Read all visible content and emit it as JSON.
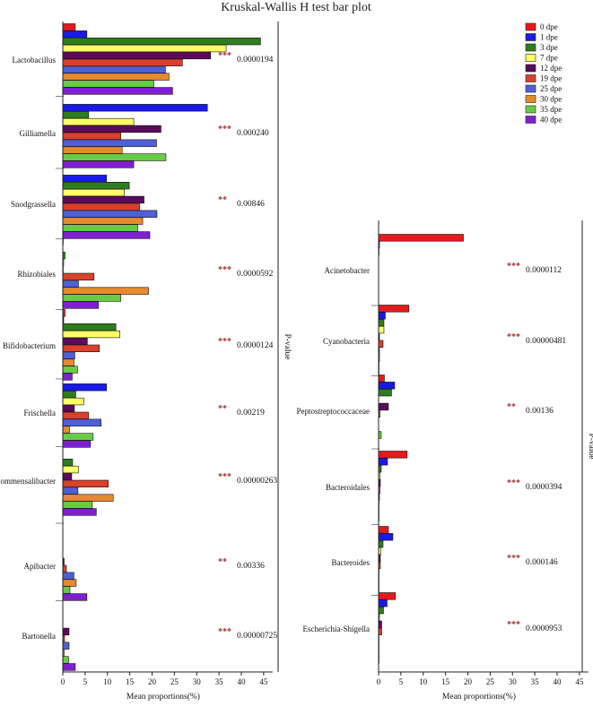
{
  "chart_data": {
    "type": "bar",
    "orientation": "horizontal",
    "title": "Kruskal-Wallis H test bar plot",
    "xlabel": "Mean proportions(%)",
    "pvalue_axis_label": "P-value",
    "xlim": [
      0,
      47
    ],
    "xticks": [
      0,
      5,
      10,
      15,
      20,
      25,
      30,
      35,
      40,
      45
    ],
    "legend_position": "top-right",
    "groups": [
      {
        "name": "0 dpe",
        "color": "#e41a1c"
      },
      {
        "name": "1 dpe",
        "color": "#1a1ae6"
      },
      {
        "name": "3 dpe",
        "color": "#2e7d1f"
      },
      {
        "name": "7 dpe",
        "color": "#ffff66"
      },
      {
        "name": "12 dpe",
        "color": "#5c0a5c"
      },
      {
        "name": "19 dpe",
        "color": "#d9412a"
      },
      {
        "name": "25 dpe",
        "color": "#4f5fd6"
      },
      {
        "name": "30 dpe",
        "color": "#e58a2e"
      },
      {
        "name": "35 dpe",
        "color": "#66cc44"
      },
      {
        "name": "40 dpe",
        "color": "#7f1fcf"
      }
    ],
    "panels": [
      {
        "taxa": [
          {
            "name": "Lactobacillus",
            "stars": "***",
            "pvalue": "0.0000194",
            "values": [
              2.8,
              5.4,
              44.3,
              36.6,
              33.1,
              26.8,
              23.0,
              23.8,
              20.4,
              24.6
            ]
          },
          {
            "name": "Gilliamella",
            "stars": "***",
            "pvalue": "0.000240",
            "values": [
              0,
              32.4,
              5.8,
              15.9,
              22.0,
              13.0,
              21.0,
              13.3,
              23.1,
              15.9
            ]
          },
          {
            "name": "Snodgrassella",
            "stars": "**",
            "pvalue": "0.00846",
            "values": [
              0,
              9.8,
              14.9,
              13.8,
              18.2,
              17.2,
              21.1,
              17.9,
              16.8,
              19.5
            ]
          },
          {
            "name": "Rhizobiales",
            "stars": "***",
            "pvalue": "0.0000592",
            "values": [
              0.1,
              0,
              0.5,
              0.2,
              0.1,
              7.0,
              3.5,
              19.2,
              13.0,
              8.0
            ]
          },
          {
            "name": "Bifidobacterium",
            "stars": "***",
            "pvalue": "0.0000124",
            "values": [
              0.5,
              0.2,
              11.9,
              12.8,
              5.5,
              8.2,
              2.7,
              2.5,
              3.3,
              2.1
            ]
          },
          {
            "name": "Frischella",
            "stars": "**",
            "pvalue": "0.00219",
            "values": [
              0,
              9.8,
              2.9,
              4.7,
              2.6,
              5.8,
              8.6,
              1.5,
              6.8,
              6.2
            ]
          },
          {
            "name": "Commensalibacter",
            "stars": "***",
            "pvalue": "0.00000263",
            "values": [
              0,
              0,
              2.2,
              3.5,
              2.0,
              10.2,
              3.4,
              11.3,
              6.6,
              7.5
            ]
          },
          {
            "name": "Apibacter",
            "stars": "**",
            "pvalue": "0.00336",
            "values": [
              0,
              0,
              0,
              0,
              0.3,
              0.8,
              2.5,
              3.0,
              1.6,
              5.4
            ]
          },
          {
            "name": "Bartonella",
            "stars": "***",
            "pvalue": "0.00000725",
            "values": [
              0,
              0,
              0,
              0,
              1.4,
              0.4,
              1.4,
              0.3,
              1.3,
              2.8
            ]
          }
        ]
      },
      {
        "taxa": [
          {
            "name": "Acinetobacter",
            "stars": "***",
            "pvalue": "0.0000112",
            "values": [
              19.0,
              0.2,
              0.1,
              0,
              0,
              0,
              0,
              0,
              0,
              0
            ]
          },
          {
            "name": "Cyanobacteria",
            "stars": "***",
            "pvalue": "0.00000481",
            "values": [
              6.8,
              1.5,
              1.2,
              1.2,
              0.2,
              1.0,
              0.2,
              0.2,
              0.1,
              0.1
            ]
          },
          {
            "name": "Peptostreptococcaceae",
            "stars": "**",
            "pvalue": "0.00136",
            "values": [
              1.3,
              3.6,
              2.9,
              0,
              2.2,
              0.3,
              0,
              0,
              0.6,
              0
            ]
          },
          {
            "name": "Bacteroidales",
            "stars": "***",
            "pvalue": "0.0000394",
            "values": [
              6.4,
              2.0,
              0.6,
              0.3,
              0.4,
              0.3,
              0.2,
              0.1,
              0.1,
              0.1
            ]
          },
          {
            "name": "Bacteroides",
            "stars": "***",
            "pvalue": "0.000146",
            "values": [
              2.2,
              3.2,
              1.0,
              0.5,
              0.4,
              0.4,
              0.1,
              0.1,
              0.1,
              0.1
            ]
          },
          {
            "name": "Escherichia-Shigella",
            "stars": "***",
            "pvalue": "0.0000953",
            "values": [
              3.8,
              1.9,
              1.1,
              0.2,
              0.7,
              0.7,
              0.1,
              0.1,
              0.1,
              0.1
            ]
          }
        ]
      }
    ]
  }
}
